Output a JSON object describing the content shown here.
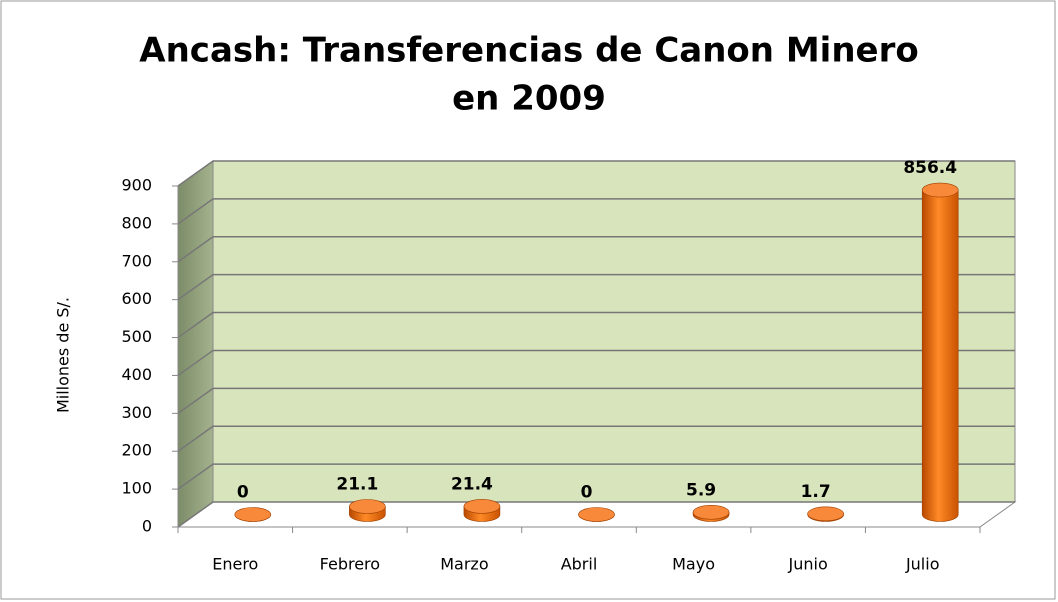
{
  "chart_data": {
    "type": "bar3d",
    "title": [
      "Ancash:  Transferencias de Canon Minero",
      "en 2009"
    ],
    "y_label": "Millones de S/.",
    "categories": [
      "Enero",
      "Febrero",
      "Marzo",
      "Abril",
      "Mayo",
      "Junio",
      "Julio"
    ],
    "values": [
      0,
      21.1,
      21.4,
      0,
      5.9,
      1.7,
      856.4
    ],
    "color": "#f07818",
    "ylim": [
      0,
      900
    ],
    "yticks": [
      0,
      100,
      200,
      300,
      400,
      500,
      600,
      700,
      800,
      900
    ],
    "grid": true
  }
}
